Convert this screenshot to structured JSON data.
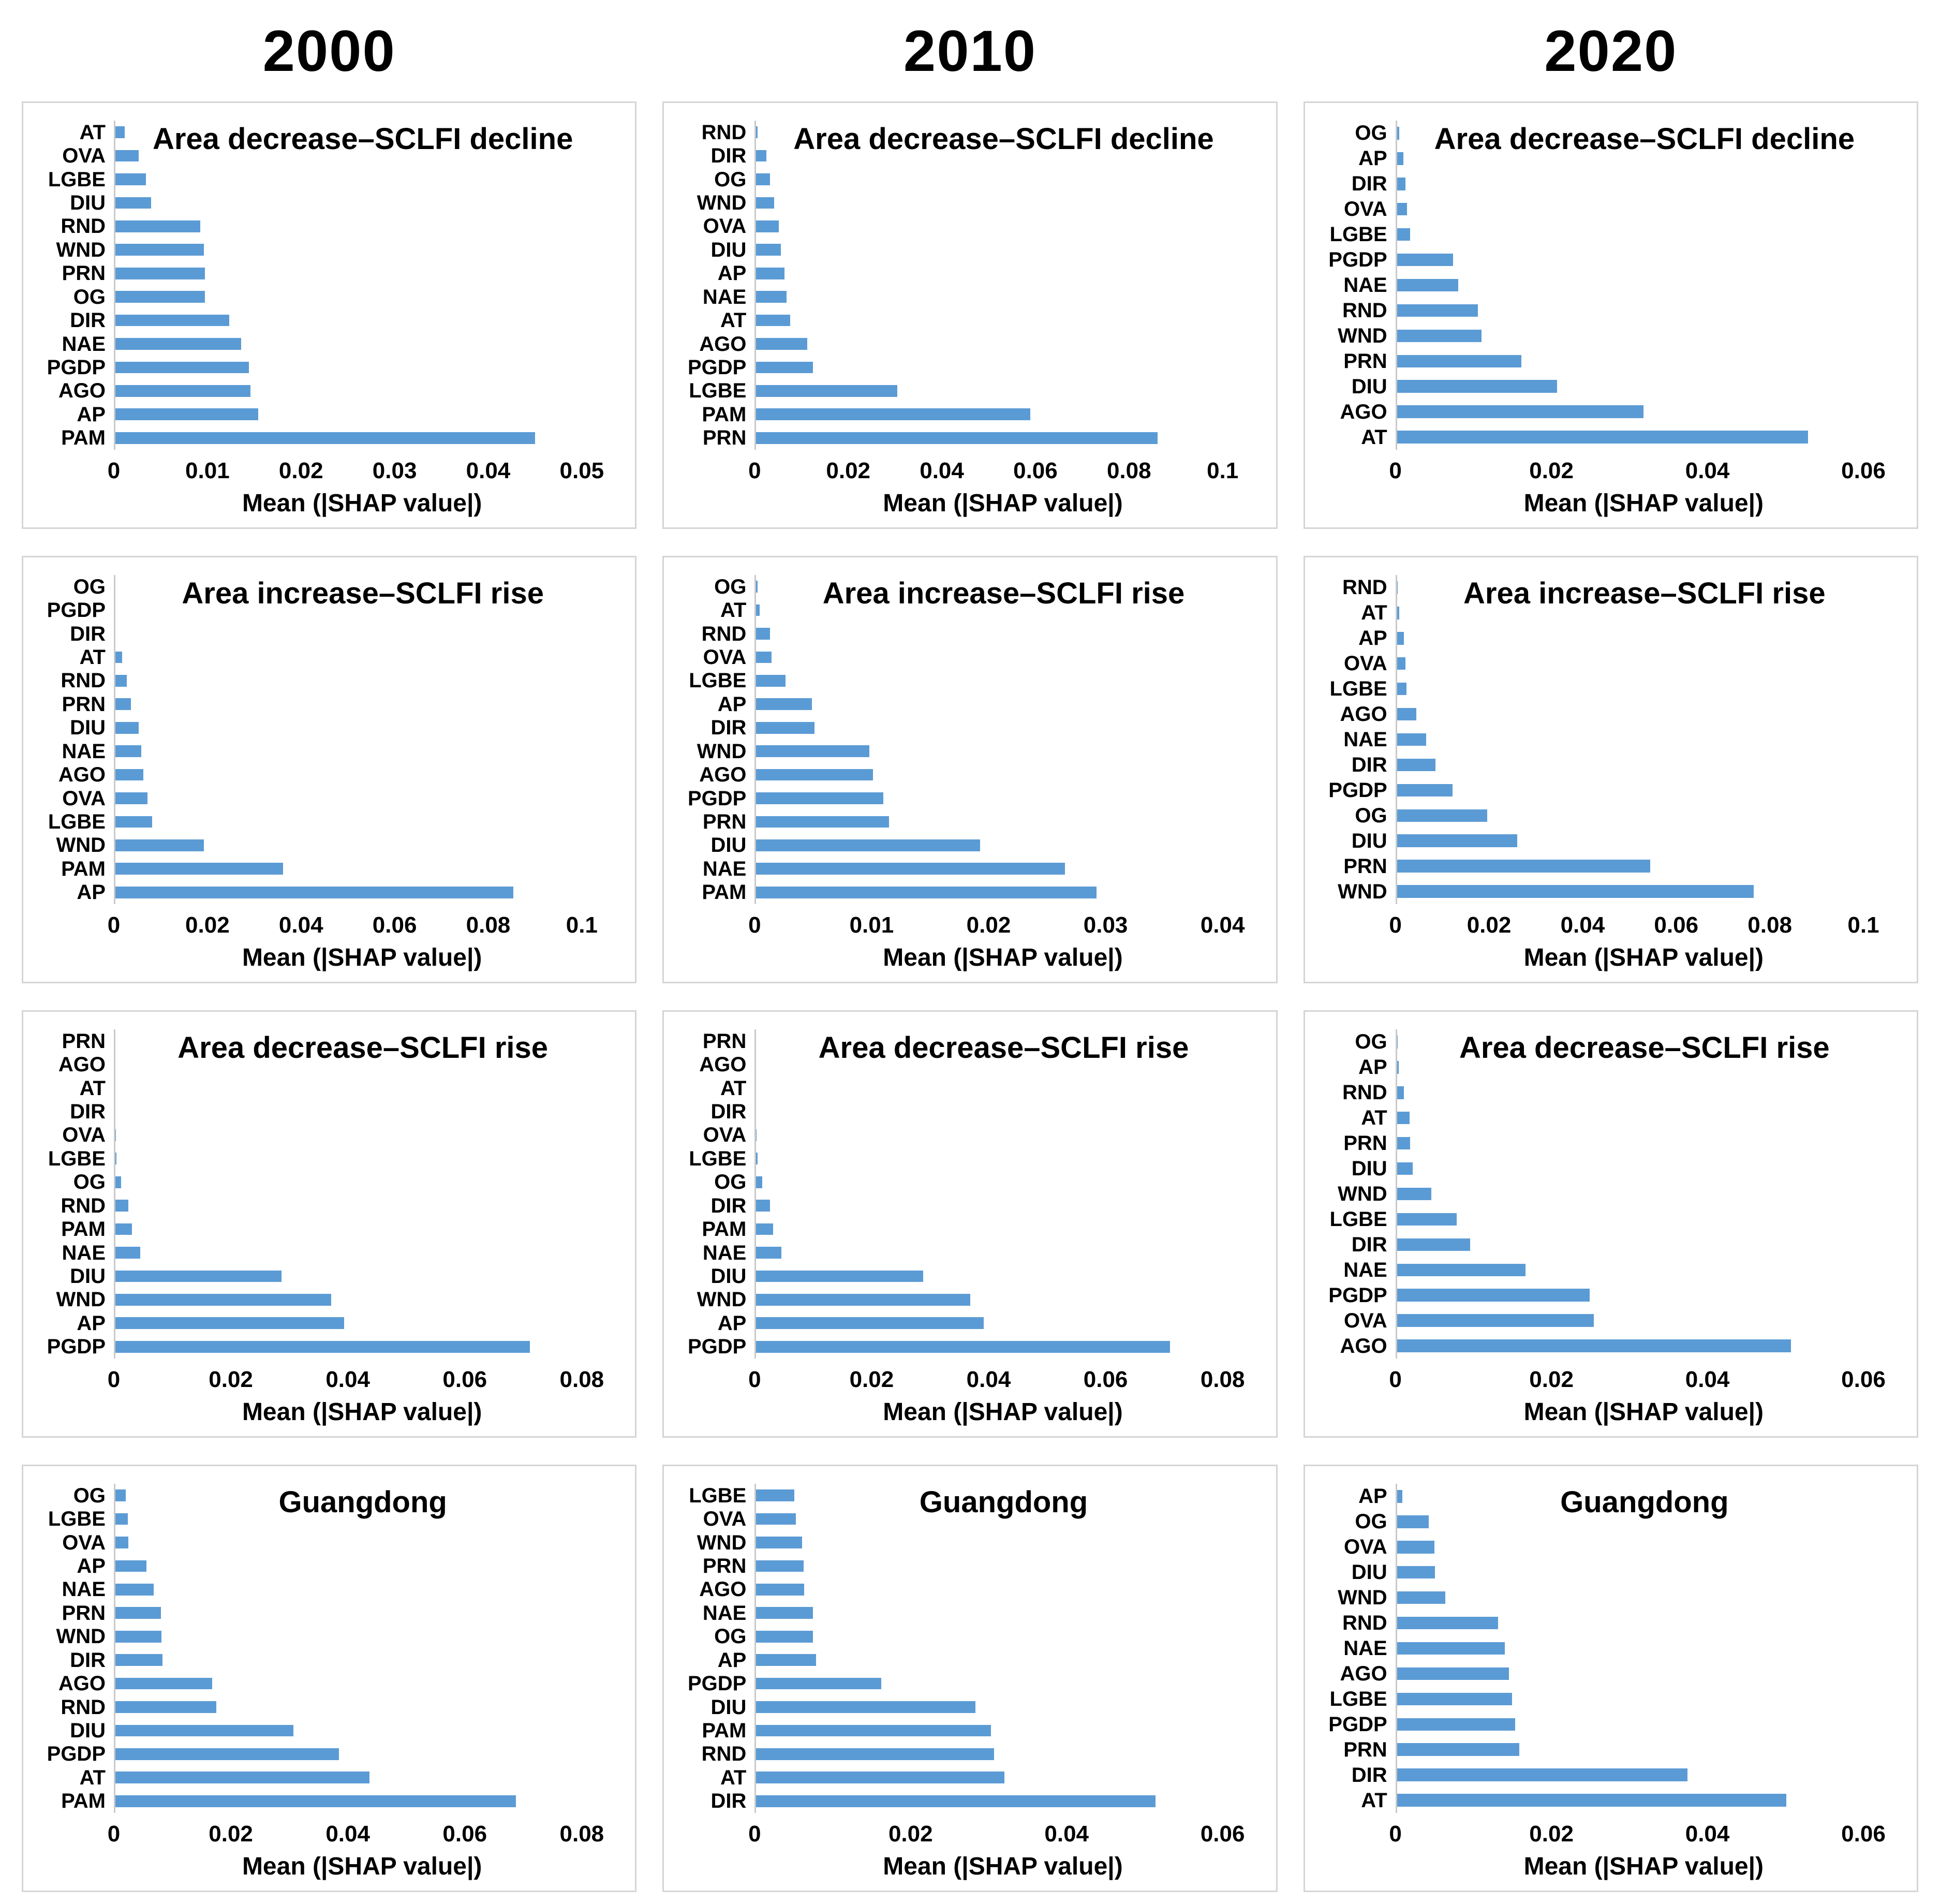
{
  "header": {
    "years": [
      "2000",
      "2010",
      "2020"
    ]
  },
  "style": {
    "bar_color": "#5B9BD5",
    "axis_line_color": "#C9C9C9",
    "panel_border_color": "#D5D5D5",
    "text_color": "#000000"
  },
  "chart_data": [
    {
      "type": "bar",
      "orientation": "horizontal",
      "year": "2000",
      "title": "Area decrease–SCLFI decline",
      "xlabel": "Mean (|SHAP value|)",
      "xlim": [
        0,
        0.05
      ],
      "grid": false,
      "legend": "none",
      "categories": [
        "AT",
        "OVA",
        "LGBE",
        "DIU",
        "RND",
        "WND",
        "PRN",
        "OG",
        "DIR",
        "NAE",
        "PGDP",
        "AGO",
        "AP",
        "PAM"
      ],
      "values": [
        0.001,
        0.0025,
        0.0033,
        0.0038,
        0.0091,
        0.0095,
        0.0096,
        0.0096,
        0.0122,
        0.0135,
        0.0143,
        0.0145,
        0.0153,
        0.045
      ],
      "xticks": [
        "0",
        "0.01",
        "0.02",
        "0.03",
        "0.04",
        "0.05"
      ]
    },
    {
      "type": "bar",
      "orientation": "horizontal",
      "year": "2010",
      "title": "Area decrease–SCLFI decline",
      "xlabel": "Mean (|SHAP value|)",
      "xlim": [
        0,
        0.1
      ],
      "grid": false,
      "legend": "none",
      "categories": [
        "RND",
        "DIR",
        "OG",
        "WND",
        "OVA",
        "DIU",
        "AP",
        "NAE",
        "AT",
        "AGO",
        "PGDP",
        "LGBE",
        "PAM",
        "PRN"
      ],
      "values": [
        0.0003,
        0.0022,
        0.003,
        0.0039,
        0.0049,
        0.0053,
        0.0061,
        0.0065,
        0.0073,
        0.011,
        0.0122,
        0.0302,
        0.0588,
        0.0861
      ],
      "xticks": [
        "0",
        "0.02",
        "0.04",
        "0.06",
        "0.08",
        "0.1"
      ]
    },
    {
      "type": "bar",
      "orientation": "horizontal",
      "year": "2020",
      "title": "Area decrease–SCLFI decline",
      "xlabel": "Mean (|SHAP value|)",
      "xlim": [
        0,
        0.06
      ],
      "grid": false,
      "legend": "none",
      "categories": [
        "OG",
        "AP",
        "DIR",
        "OVA",
        "LGBE",
        "PGDP",
        "NAE",
        "RND",
        "WND",
        "PRN",
        "DIU",
        "AGO",
        "AT"
      ],
      "values": [
        0.0003,
        0.0008,
        0.0011,
        0.0013,
        0.0017,
        0.0072,
        0.0079,
        0.0104,
        0.0109,
        0.016,
        0.0206,
        0.0317,
        0.0529
      ],
      "xticks": [
        "0",
        "0.02",
        "0.04",
        "0.06"
      ]
    },
    {
      "type": "bar",
      "orientation": "horizontal",
      "year": "2000",
      "title": "Area increase–SCLFI rise",
      "xlabel": "Mean (|SHAP value|)",
      "xlim": [
        0,
        0.1
      ],
      "grid": false,
      "legend": "none",
      "categories": [
        "OG",
        "PGDP",
        "DIR",
        "AT",
        "RND",
        "PRN",
        "DIU",
        "NAE",
        "AGO",
        "OVA",
        "LGBE",
        "WND",
        "PAM",
        "AP"
      ],
      "values": [
        0,
        0,
        0,
        0.0014,
        0.0024,
        0.0033,
        0.005,
        0.0055,
        0.006,
        0.0069,
        0.0079,
        0.019,
        0.0359,
        0.0853
      ],
      "xticks": [
        "0",
        "0.02",
        "0.04",
        "0.06",
        "0.08",
        "0.1"
      ]
    },
    {
      "type": "bar",
      "orientation": "horizontal",
      "year": "2010",
      "title": "Area increase–SCLFI rise",
      "xlabel": "Mean (|SHAP value|)",
      "xlim": [
        0,
        0.04
      ],
      "grid": false,
      "legend": "none",
      "categories": [
        "OG",
        "AT",
        "RND",
        "OVA",
        "LGBE",
        "AP",
        "DIR",
        "WND",
        "AGO",
        "PGDP",
        "PRN",
        "DIU",
        "NAE",
        "PAM"
      ],
      "values": [
        0.0001,
        0.0003,
        0.0012,
        0.0013,
        0.0025,
        0.0048,
        0.005,
        0.0097,
        0.01,
        0.0109,
        0.0114,
        0.0192,
        0.0265,
        0.0292
      ],
      "xticks": [
        "0",
        "0.01",
        "0.02",
        "0.03",
        "0.04"
      ]
    },
    {
      "type": "bar",
      "orientation": "horizontal",
      "year": "2020",
      "title": "Area increase–SCLFI rise",
      "xlabel": "Mean (|SHAP value|)",
      "xlim": [
        0,
        0.1
      ],
      "grid": false,
      "legend": "none",
      "categories": [
        "RND",
        "AT",
        "AP",
        "OVA",
        "LGBE",
        "AGO",
        "NAE",
        "DIR",
        "PGDP",
        "OG",
        "DIU",
        "PRN",
        "WND"
      ],
      "values": [
        0.0002,
        0.0005,
        0.0015,
        0.0018,
        0.002,
        0.0041,
        0.0063,
        0.0082,
        0.0119,
        0.0193,
        0.0258,
        0.0543,
        0.0765
      ],
      "xticks": [
        "0",
        "0.02",
        "0.04",
        "0.06",
        "0.08",
        "0.1"
      ]
    },
    {
      "type": "bar",
      "orientation": "horizontal",
      "year": "2000",
      "title": "Area decrease–SCLFI rise",
      "xlabel": "Mean (|SHAP value|)",
      "xlim": [
        0,
        0.08
      ],
      "grid": false,
      "legend": "none",
      "categories": [
        "PRN",
        "AGO",
        "AT",
        "DIR",
        "OVA",
        "LGBE",
        "OG",
        "RND",
        "PAM",
        "NAE",
        "DIU",
        "WND",
        "AP",
        "PGDP"
      ],
      "values": [
        0,
        0,
        0,
        0,
        0.0001,
        0.0002,
        0.001,
        0.0022,
        0.0028,
        0.0043,
        0.0285,
        0.037,
        0.0392,
        0.0711
      ],
      "xticks": [
        "0",
        "0.02",
        "0.04",
        "0.06",
        "0.08"
      ]
    },
    {
      "type": "bar",
      "orientation": "horizontal",
      "year": "2010",
      "title": "Area decrease–SCLFI rise",
      "xlabel": "Mean (|SHAP value|)",
      "xlim": [
        0,
        0.08
      ],
      "grid": false,
      "legend": "none",
      "categories": [
        "PRN",
        "AGO",
        "AT",
        "DIR",
        "OVA",
        "LGBE",
        "OG",
        "DIR",
        "PAM",
        "NAE",
        "DIU",
        "WND",
        "AP",
        "PGDP"
      ],
      "values": [
        0,
        0,
        0,
        0,
        0.0001,
        0.0002,
        0.001,
        0.0024,
        0.0029,
        0.0043,
        0.0286,
        0.0367,
        0.039,
        0.071
      ],
      "xticks": [
        "0",
        "0.02",
        "0.04",
        "0.06",
        "0.08"
      ]
    },
    {
      "type": "bar",
      "orientation": "horizontal",
      "year": "2020",
      "title": "Area decrease–SCLFI rise",
      "xlabel": "Mean (|SHAP value|)",
      "xlim": [
        0,
        0.06
      ],
      "grid": false,
      "legend": "none",
      "categories": [
        "OG",
        "AP",
        "RND",
        "AT",
        "PRN",
        "DIU",
        "WND",
        "LGBE",
        "DIR",
        "NAE",
        "PGDP",
        "OVA",
        "AGO"
      ],
      "values": [
        0.0001,
        0.0002,
        0.0009,
        0.0016,
        0.0017,
        0.002,
        0.0044,
        0.0077,
        0.0094,
        0.0165,
        0.0248,
        0.0253,
        0.0507
      ],
      "xticks": [
        "0",
        "0.02",
        "0.04",
        "0.06"
      ]
    },
    {
      "type": "bar",
      "orientation": "horizontal",
      "year": "2000",
      "title": "Guangdong",
      "xlabel": "Mean (|SHAP value|)",
      "xlim": [
        0,
        0.08
      ],
      "grid": false,
      "legend": "none",
      "categories": [
        "OG",
        "LGBE",
        "OVA",
        "AP",
        "NAE",
        "PRN",
        "WND",
        "DIR",
        "AGO",
        "RND",
        "DIU",
        "PGDP",
        "AT",
        "PAM"
      ],
      "values": [
        0.0018,
        0.0021,
        0.0022,
        0.0053,
        0.0066,
        0.0078,
        0.0079,
        0.0081,
        0.0166,
        0.0173,
        0.0305,
        0.0383,
        0.0436,
        0.0687
      ],
      "xticks": [
        "0",
        "0.02",
        "0.04",
        "0.06",
        "0.08"
      ]
    },
    {
      "type": "bar",
      "orientation": "horizontal",
      "year": "2010",
      "title": "Guangdong",
      "xlabel": "Mean (|SHAP value|)",
      "xlim": [
        0,
        0.06
      ],
      "grid": false,
      "legend": "none",
      "categories": [
        "LGBE",
        "OVA",
        "WND",
        "PRN",
        "AGO",
        "NAE",
        "OG",
        "AP",
        "PGDP",
        "DIU",
        "PAM",
        "RND",
        "AT",
        "DIR"
      ],
      "values": [
        0.0049,
        0.0051,
        0.0059,
        0.0061,
        0.0062,
        0.0073,
        0.0073,
        0.0077,
        0.0161,
        0.0282,
        0.0302,
        0.0306,
        0.0319,
        0.0514
      ],
      "xticks": [
        "0",
        "0.02",
        "0.04",
        "0.06"
      ]
    },
    {
      "type": "bar",
      "orientation": "horizontal",
      "year": "2020",
      "title": "Guangdong",
      "xlabel": "Mean (|SHAP value|)",
      "xlim": [
        0,
        0.06
      ],
      "grid": false,
      "legend": "none",
      "categories": [
        "AP",
        "OG",
        "OVA",
        "DIU",
        "WND",
        "RND",
        "NAE",
        "AGO",
        "LGBE",
        "PGDP",
        "PRN",
        "DIR",
        "AT"
      ],
      "values": [
        0.0007,
        0.0041,
        0.0048,
        0.0049,
        0.0062,
        0.013,
        0.0139,
        0.0144,
        0.0148,
        0.0152,
        0.0157,
        0.0374,
        0.0501
      ],
      "xticks": [
        "0",
        "0.02",
        "0.04",
        "0.06"
      ]
    }
  ]
}
